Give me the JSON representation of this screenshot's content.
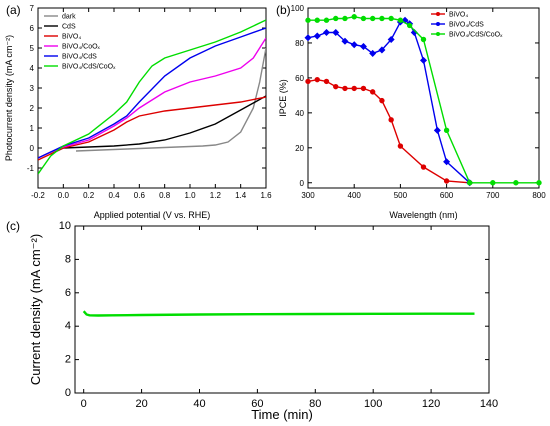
{
  "panel_labels": [
    "(a)",
    "(b)",
    "(c)"
  ],
  "chart_data": [
    {
      "type": "line",
      "panel": "(a)",
      "xlabel": "Applied potential (V vs. RHE)",
      "ylabel": "Photocurrent density (mA cm⁻²)",
      "xlim": [
        -0.2,
        1.6
      ],
      "ylim": [
        -2,
        7
      ],
      "xticks": [
        "-0.2",
        "0.0",
        "0.2",
        "0.4",
        "0.6",
        "0.8",
        "1.0",
        "1.2",
        "1.4",
        "1.6"
      ],
      "yticks": [
        "-1",
        "0",
        "1",
        "2",
        "3",
        "4",
        "5",
        "6",
        "7"
      ],
      "legend_position": "top-left",
      "series": [
        {
          "name": "dark",
          "color": "#888888",
          "x": [
            0.1,
            0.3,
            0.5,
            0.7,
            0.9,
            1.1,
            1.2,
            1.3,
            1.4,
            1.5,
            1.55,
            1.6
          ],
          "y": [
            -0.15,
            -0.1,
            -0.05,
            0.0,
            0.05,
            0.1,
            0.15,
            0.3,
            0.8,
            2.0,
            3.3,
            5.0
          ]
        },
        {
          "name": "CdS",
          "color": "#000000",
          "x": [
            -0.1,
            0.0,
            0.2,
            0.4,
            0.6,
            0.8,
            1.0,
            1.2,
            1.4,
            1.6
          ],
          "y": [
            -0.3,
            0.0,
            0.05,
            0.1,
            0.2,
            0.4,
            0.75,
            1.2,
            1.9,
            2.6
          ]
        },
        {
          "name": "BiVO₄",
          "color": "#dd0000",
          "x": [
            -0.2,
            -0.1,
            0.0,
            0.2,
            0.4,
            0.5,
            0.6,
            0.8,
            1.0,
            1.2,
            1.4,
            1.6
          ],
          "y": [
            -0.6,
            -0.3,
            0.0,
            0.3,
            0.9,
            1.3,
            1.6,
            1.85,
            2.0,
            2.15,
            2.3,
            2.55
          ]
        },
        {
          "name": "BiVO₄/CoOₓ",
          "color": "#ee00ee",
          "x": [
            -0.2,
            -0.1,
            0.0,
            0.2,
            0.4,
            0.5,
            0.6,
            0.8,
            1.0,
            1.2,
            1.4,
            1.5,
            1.6
          ],
          "y": [
            -0.5,
            -0.2,
            0.05,
            0.4,
            1.1,
            1.5,
            2.0,
            2.8,
            3.3,
            3.6,
            4.0,
            4.5,
            5.5
          ]
        },
        {
          "name": "BiVO₄/CdS",
          "color": "#0000ee",
          "x": [
            -0.2,
            -0.1,
            0.0,
            0.2,
            0.4,
            0.5,
            0.6,
            0.8,
            1.0,
            1.2,
            1.4,
            1.6
          ],
          "y": [
            -0.5,
            -0.2,
            0.1,
            0.5,
            1.2,
            1.6,
            2.3,
            3.6,
            4.5,
            5.1,
            5.55,
            6.0
          ]
        },
        {
          "name": "BiVO₄/CdS/CoOₓ",
          "color": "#00dd00",
          "x": [
            -0.2,
            -0.1,
            0.0,
            0.2,
            0.4,
            0.5,
            0.6,
            0.7,
            0.8,
            1.0,
            1.2,
            1.4,
            1.6
          ],
          "y": [
            -1.3,
            -0.4,
            0.1,
            0.7,
            1.7,
            2.3,
            3.3,
            4.1,
            4.5,
            4.9,
            5.3,
            5.8,
            6.4
          ]
        }
      ]
    },
    {
      "type": "line",
      "panel": "(b)",
      "xlabel": "Wavelength (nm)",
      "ylabel": "IPCE (%)",
      "xlim": [
        300,
        800
      ],
      "ylim": [
        -3,
        100
      ],
      "xticks": [
        "300",
        "400",
        "500",
        "600",
        "700",
        "800"
      ],
      "yticks": [
        "0",
        "20",
        "40",
        "60",
        "80",
        "100"
      ],
      "legend_position": "top-right",
      "series": [
        {
          "name": "BiVO₄",
          "color": "#dd0000",
          "marker": "circle",
          "x": [
            300,
            320,
            340,
            360,
            380,
            400,
            420,
            440,
            460,
            480,
            500,
            550,
            600,
            650
          ],
          "y": [
            58,
            59,
            58,
            55,
            54,
            54,
            54,
            52,
            47,
            36,
            21,
            9,
            1,
            0
          ]
        },
        {
          "name": "BiVO₄/CdS",
          "color": "#0000ee",
          "marker": "diamond",
          "x": [
            300,
            320,
            340,
            360,
            380,
            400,
            420,
            440,
            460,
            480,
            500,
            510,
            520,
            530,
            550,
            580,
            600,
            650
          ],
          "y": [
            83,
            84,
            86,
            86,
            81,
            79,
            78,
            74,
            76,
            82,
            92,
            93,
            91,
            86,
            70,
            30,
            12,
            0
          ]
        },
        {
          "name": "BiVO₄/CdS/CoOₓ",
          "color": "#00dd00",
          "marker": "circle",
          "x": [
            300,
            320,
            340,
            360,
            380,
            400,
            420,
            440,
            460,
            480,
            500,
            520,
            550,
            600,
            650,
            700,
            750,
            800
          ],
          "y": [
            93,
            93,
            93,
            94,
            94,
            95,
            94,
            94,
            94,
            94,
            93,
            90,
            82,
            30,
            0,
            0,
            0,
            0
          ]
        }
      ]
    },
    {
      "type": "line",
      "panel": "(c)",
      "xlabel": "Time (min)",
      "ylabel": "Current density (mA cm⁻²)",
      "xlim": [
        -3,
        140
      ],
      "ylim": [
        0,
        10
      ],
      "xticks": [
        "0",
        "20",
        "40",
        "60",
        "80",
        "100",
        "120",
        "140"
      ],
      "yticks": [
        "0",
        "2",
        "4",
        "6",
        "8",
        "10"
      ],
      "series": [
        {
          "name": "",
          "color": "#00dd00",
          "x": [
            0,
            0.5,
            1,
            2,
            5,
            10,
            20,
            40,
            60,
            80,
            100,
            120,
            135
          ],
          "y": [
            4.9,
            4.8,
            4.7,
            4.65,
            4.64,
            4.65,
            4.67,
            4.7,
            4.72,
            4.73,
            4.74,
            4.75,
            4.75
          ]
        }
      ]
    }
  ]
}
